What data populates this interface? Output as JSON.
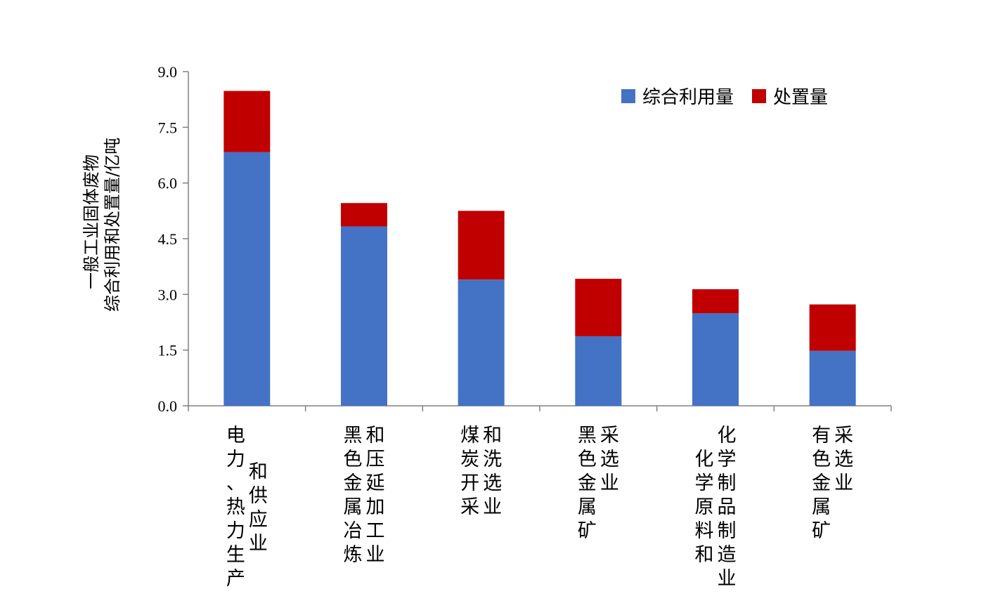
{
  "chart_data": {
    "type": "bar",
    "stacked": true,
    "ylabel_lines": [
      "一般工业固体废物",
      "综合利用和处置量/亿吨"
    ],
    "ylim": [
      0,
      9.0
    ],
    "yticks": [
      "0.0",
      "1.5",
      "3.0",
      "4.5",
      "6.0",
      "7.5",
      "9.0"
    ],
    "ytick_values": [
      0,
      1.5,
      3.0,
      4.5,
      6.0,
      7.5,
      9.0
    ],
    "categories": [
      "电力、热力生产和供应业",
      "黑色金属冶炼和压延加工业",
      "煤炭开采和洗选业",
      "黑色金属采选业",
      "化学原料和化学制品制造业",
      "有色金属矿采选业"
    ],
    "category_label_columns": [
      [
        "电力、热力生产",
        "和供应业"
      ],
      [
        "黑色金属冶炼",
        "和压延加工业"
      ],
      [
        "煤炭开采",
        "和洗选业"
      ],
      [
        "黑色金属矿",
        "采选业"
      ],
      [
        "化学原料和",
        "化学制品制造业"
      ],
      [
        "有色金属矿",
        "采选业"
      ]
    ],
    "series": [
      {
        "name": "综合利用量",
        "color": "#4472C4",
        "values": [
          6.83,
          4.83,
          3.4,
          1.87,
          2.49,
          1.48
        ]
      },
      {
        "name": "处置量",
        "color": "#C00000",
        "values": [
          1.65,
          0.63,
          1.85,
          1.55,
          0.65,
          1.25
        ]
      }
    ],
    "legend_position": "top-right",
    "grid": false
  }
}
